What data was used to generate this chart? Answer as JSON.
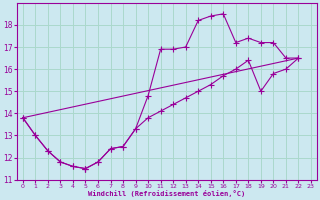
{
  "xlabel": "Windchill (Refroidissement éolien,°C)",
  "bg_color": "#cce8f0",
  "line_color": "#990099",
  "xlim": [
    -0.5,
    23.5
  ],
  "ylim": [
    11,
    19
  ],
  "xticks": [
    0,
    1,
    2,
    3,
    4,
    5,
    6,
    7,
    8,
    9,
    10,
    11,
    12,
    13,
    14,
    15,
    16,
    17,
    18,
    19,
    20,
    21,
    22,
    23
  ],
  "yticks": [
    11,
    12,
    13,
    14,
    15,
    16,
    17,
    18
  ],
  "grid_color": "#aad8cc",
  "line1_x": [
    0,
    1,
    2,
    3,
    4,
    5,
    5,
    6,
    7,
    8,
    9,
    10,
    11,
    12,
    13,
    14,
    15,
    16,
    17,
    18,
    19,
    20,
    21,
    22
  ],
  "line1_y": [
    13.8,
    13.0,
    12.3,
    11.8,
    11.6,
    11.5,
    11.5,
    11.8,
    12.4,
    12.5,
    13.3,
    14.8,
    16.9,
    16.9,
    17.0,
    18.2,
    18.4,
    18.5,
    17.2,
    17.4,
    17.2,
    17.2,
    16.5,
    16.5
  ],
  "line2_x": [
    0,
    1,
    2,
    3,
    4,
    5,
    6,
    7,
    8,
    9,
    10,
    11,
    12,
    13,
    14,
    15,
    16,
    17,
    18,
    19,
    20,
    21,
    22
  ],
  "line2_y": [
    13.8,
    13.0,
    12.3,
    11.8,
    11.6,
    11.5,
    11.8,
    12.4,
    12.5,
    13.3,
    13.8,
    14.1,
    14.4,
    14.7,
    15.0,
    15.3,
    15.7,
    16.0,
    16.4,
    15.0,
    15.8,
    16.0,
    16.5
  ],
  "line3_x": [
    0,
    22
  ],
  "line3_y": [
    13.8,
    16.5
  ],
  "font_color": "#990099"
}
